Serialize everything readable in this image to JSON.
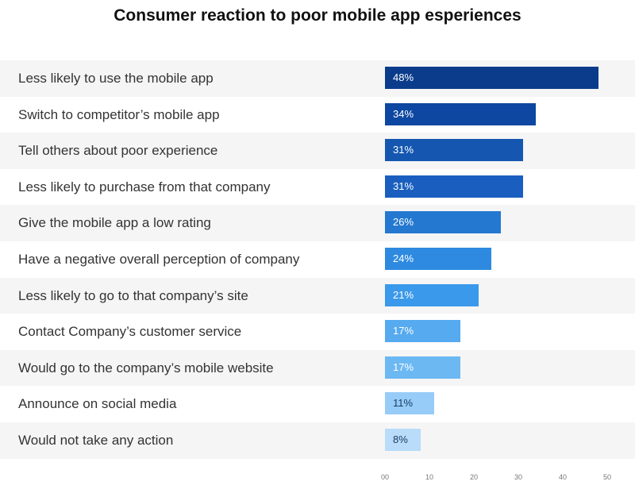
{
  "chart_data": {
    "type": "bar",
    "orientation": "horizontal",
    "title": "Consumer reaction to poor mobile app esperiences",
    "xlim": [
      0,
      50
    ],
    "categories": [
      "Less likely to use the mobile app",
      "Switch to competitor’s mobile app",
      "Tell others about poor experience",
      "Less likely to purchase from that company",
      "Give the mobile app a low rating",
      "Have a negative overall perception of company",
      "Less likely to go to that company’s site",
      "Contact Company’s customer service",
      "Would go to the company’s mobile website",
      "Announce on social media",
      "Would not take any action"
    ],
    "values": [
      48,
      34,
      31,
      31,
      26,
      24,
      21,
      17,
      17,
      11,
      8
    ],
    "data_labels": [
      "48%",
      "34%",
      "31%",
      "31%",
      "26%",
      "24%",
      "21%",
      "17%",
      "17%",
      "11%",
      "8%"
    ],
    "x_ticks": [
      "00",
      "10",
      "20",
      "30",
      "40",
      "50"
    ],
    "x_tick_values": [
      0,
      10,
      20,
      30,
      40,
      50
    ],
    "bar_colors": [
      "#0b3c8c",
      "#0d47a1",
      "#1557b0",
      "#1a5fbf",
      "#2478d0",
      "#2d8ae0",
      "#3a99ea",
      "#56aaef",
      "#6cb8f3",
      "#96ccf7",
      "#b8dcf9"
    ],
    "bar_label_colors": [
      "#ffffff",
      "#ffffff",
      "#ffffff",
      "#ffffff",
      "#ffffff",
      "#ffffff",
      "#ffffff",
      "#ffffff",
      "#ffffff",
      "#1a3d66",
      "#1a3d66"
    ],
    "row_shading": "alternating",
    "grid": false,
    "legend": "none"
  }
}
